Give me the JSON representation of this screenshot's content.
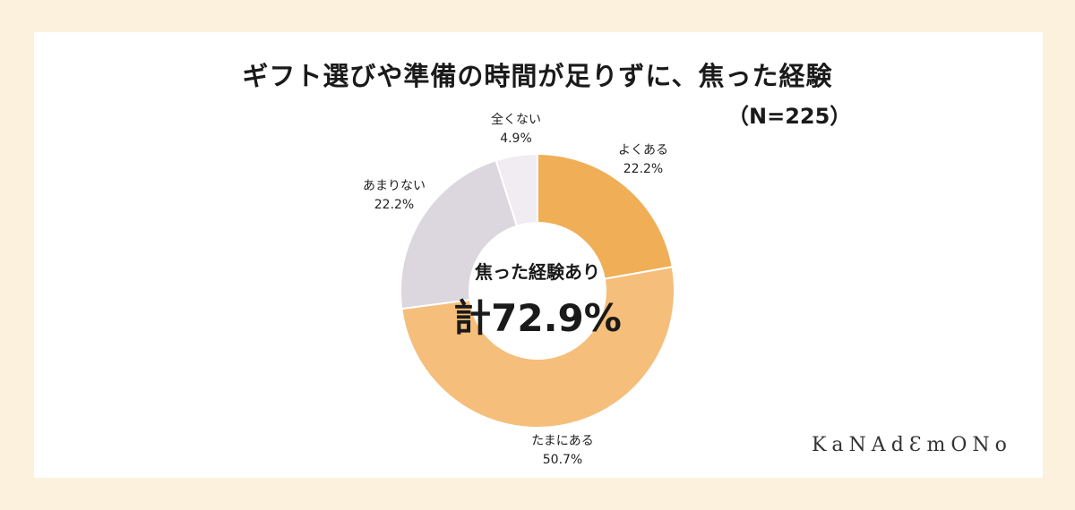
{
  "chart_data": {
    "type": "pie",
    "title": "ギフト選びや準備の時間が足りずに、焦った経験",
    "subtitle": "（N=225）",
    "center_caption": "焦った経験あり",
    "center_total": "計72.9%",
    "slices": [
      {
        "name": "よくある",
        "value": 22.2,
        "label": "22.2%",
        "color": "#f0ae57"
      },
      {
        "name": "たまにある",
        "value": 50.7,
        "label": "50.7%",
        "color": "#f5be7b"
      },
      {
        "name": "あまりない",
        "value": 22.2,
        "label": "22.2%",
        "color": "#dcd7de"
      },
      {
        "name": "全くない",
        "value": 4.9,
        "label": "4.9%",
        "color": "#f0ecf1"
      }
    ]
  },
  "branding": {
    "logo": "KaNAdƐmONo"
  }
}
